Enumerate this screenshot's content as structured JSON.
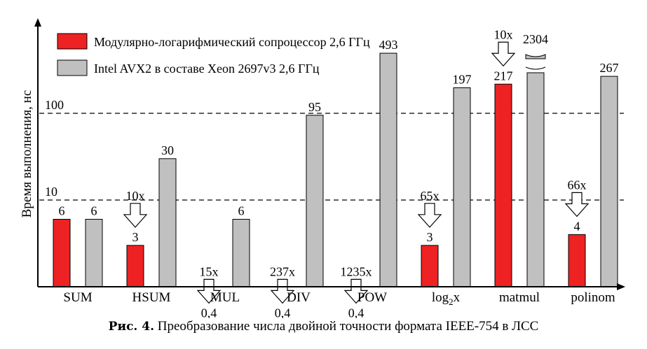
{
  "chart_data": {
    "type": "bar",
    "title": "",
    "xlabel": "",
    "ylabel": "Время выполнения, нс",
    "scale": "log",
    "reference_lines": [
      {
        "value": 10,
        "label": "10"
      },
      {
        "value": 100,
        "label": "100"
      }
    ],
    "categories": [
      {
        "label": "SUM"
      },
      {
        "label": "HSUM"
      },
      {
        "label": "MUL"
      },
      {
        "label": "DIV"
      },
      {
        "label": "POW"
      },
      {
        "label": "log",
        "sub": "2",
        "tail": "x"
      },
      {
        "label": "matmul"
      },
      {
        "label": "polinom"
      }
    ],
    "series": [
      {
        "name": "Модулярно-логарифмический сопроцессор 2,6 ГГц",
        "color": "#ee2222",
        "values": [
          6,
          3,
          0.4,
          0.4,
          0.4,
          3,
          217,
          4
        ],
        "labels": [
          "6",
          "3",
          "0,4",
          "0,4",
          "0,4",
          "3",
          "217",
          "4"
        ]
      },
      {
        "name": "Intel AVX2 в составе Xeon 2697v3 2,6 ГГц",
        "color": "#c0c0c0",
        "values": [
          6,
          30,
          6,
          95,
          493,
          197,
          2304,
          267
        ],
        "labels": [
          "6",
          "30",
          "6",
          "95",
          "493",
          "197",
          "2304",
          "267"
        ]
      }
    ],
    "speedups": [
      "",
      "10x",
      "15x",
      "237x",
      "1235x",
      "65x",
      "10x",
      "66x"
    ],
    "broken_bar": {
      "series": 1,
      "category": 6
    },
    "legend_position": "top-left"
  },
  "caption": {
    "prefix": "Рис. 4.",
    "text": "Преобразование числа двойной точности формата IEEE-754 в ЛСС"
  }
}
